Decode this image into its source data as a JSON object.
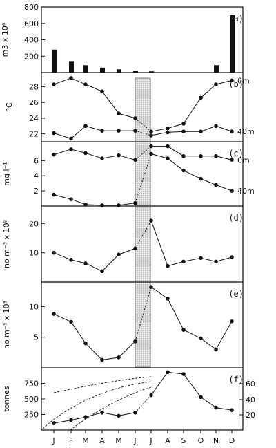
{
  "months": [
    "J",
    "F",
    "M",
    "A",
    "M",
    "J",
    "J",
    "A",
    "S",
    "O",
    "N",
    "D"
  ],
  "chart_data": [
    {
      "type": "bar",
      "label": "(a)",
      "ylabel": "m3 x 10⁶",
      "ylim": [
        0,
        800
      ],
      "yticks": [
        200,
        400,
        600,
        800
      ],
      "categories": [
        "J",
        "F",
        "M",
        "A",
        "M",
        "J",
        "J",
        "A",
        "S",
        "O",
        "N",
        "D"
      ],
      "values": [
        280,
        140,
        90,
        60,
        40,
        20,
        15,
        null,
        null,
        null,
        90,
        700
      ]
    },
    {
      "type": "line",
      "label": "(b)",
      "ylabel": "°C",
      "ylim": [
        21,
        29.8
      ],
      "yticks": [
        22,
        24,
        26,
        28
      ],
      "series": [
        {
          "name": "0m",
          "values": [
            28.3,
            29.1,
            28.3,
            27.4,
            24.6,
            24.0,
            22.3,
            22.7,
            23.3,
            26.6,
            28.3,
            28.8
          ]
        },
        {
          "name": "40m",
          "values": [
            22.1,
            21.4,
            23.0,
            22.4,
            22.4,
            22.4,
            21.8,
            22.2,
            22.3,
            22.3,
            23.0,
            22.3
          ]
        }
      ]
    },
    {
      "type": "line",
      "label": "(c)",
      "ylabel": "mg l⁻¹",
      "ylim": [
        0,
        8.5
      ],
      "yticks": [
        2,
        4,
        6
      ],
      "series": [
        {
          "name": "0m",
          "values": [
            6.8,
            7.5,
            7.0,
            6.3,
            6.7,
            6.1,
            7.9,
            7.9,
            6.6,
            6.6,
            6.6,
            6.1
          ]
        },
        {
          "name": "40m",
          "values": [
            1.5,
            0.9,
            0.2,
            0.1,
            0.1,
            0.4,
            6.9,
            6.3,
            4.7,
            3.6,
            2.8,
            2.0
          ]
        }
      ]
    },
    {
      "type": "line",
      "label": "(d)",
      "ylabel": "no m⁻³ x 10⁸",
      "ylim": [
        0,
        26
      ],
      "yticks": [
        10,
        20
      ],
      "series": [
        {
          "values": [
            10.0,
            7.6,
            6.4,
            3.7,
            9.4,
            11.5,
            21.0,
            5.5,
            7.0,
            8.2,
            7.0,
            8.5
          ]
        }
      ]
    },
    {
      "type": "line",
      "label": "(e)",
      "ylabel": "no m⁻³ x 10³",
      "ylim": [
        0,
        14
      ],
      "yticks": [
        5,
        10
      ],
      "series": [
        {
          "values": [
            8.8,
            7.5,
            4.0,
            1.3,
            1.7,
            4.3,
            13.2,
            11.3,
            6.2,
            4.8,
            3.0,
            7.6
          ]
        }
      ]
    },
    {
      "type": "line",
      "label": "(f)",
      "ylabel": "tonnes",
      "ylim": [
        0,
        1000
      ],
      "yticks": [
        250,
        500,
        750
      ],
      "y2ticks": [
        "20",
        "40",
        "60"
      ],
      "series": [
        {
          "values": [
            110,
            160,
            210,
            280,
            230,
            280,
            560,
            930,
            900,
            530,
            360,
            320
          ]
        }
      ]
    }
  ]
}
